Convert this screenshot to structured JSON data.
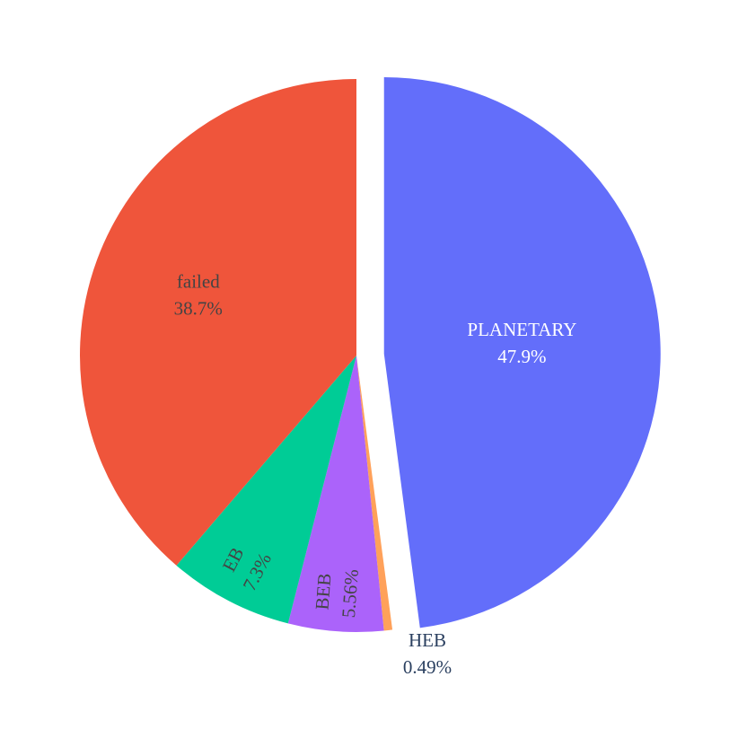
{
  "chart_data": {
    "type": "pie",
    "categories": [
      "PLANETARY",
      "HEB",
      "BEB",
      "EB",
      "failed"
    ],
    "values": [
      47.9,
      0.49,
      5.56,
      7.3,
      38.7
    ],
    "value_labels": [
      "47.9%",
      "0.49%",
      "5.56%",
      "7.3%",
      "38.7%"
    ],
    "colors": [
      "#636efa",
      "#ffa15a",
      "#ab63fa",
      "#00cc96",
      "#ef553b"
    ],
    "pull": [
      0.1,
      0,
      0,
      0,
      0
    ]
  }
}
